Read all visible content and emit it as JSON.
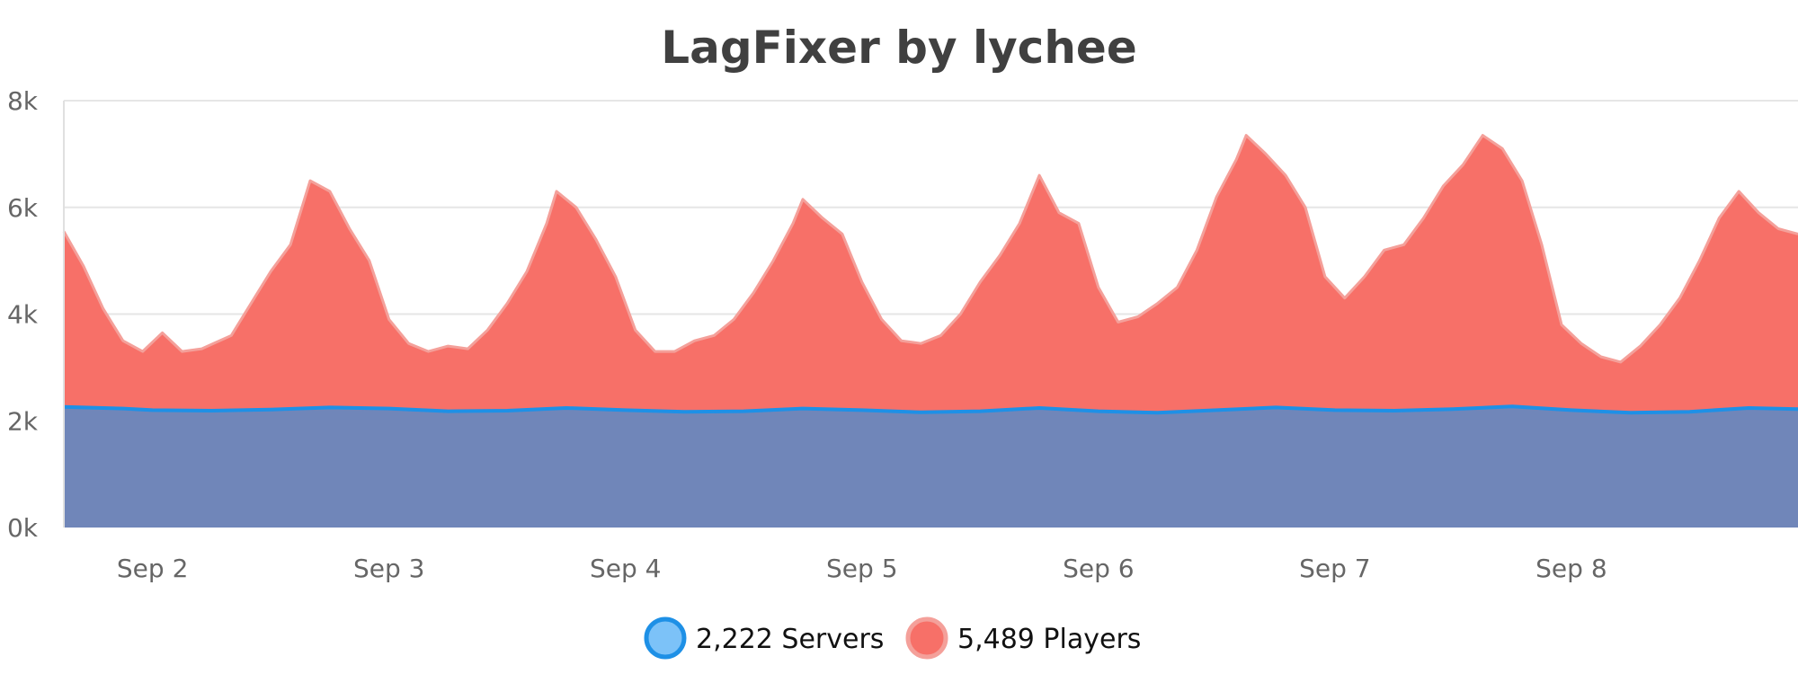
{
  "chart_data": {
    "type": "area",
    "title": "LagFixer by lychee",
    "xlabel": "",
    "ylabel": "",
    "x_range": [
      "2024-09-01 15:00",
      "2024-09-08 23:00"
    ],
    "x_ticks": [
      "Sep 2",
      "Sep 3",
      "Sep 4",
      "Sep 5",
      "Sep 6",
      "Sep 7",
      "Sep 8"
    ],
    "x_tick_positions": [
      "2024-09-02",
      "2024-09-03",
      "2024-09-04",
      "2024-09-05",
      "2024-09-06",
      "2024-09-07",
      "2024-09-08"
    ],
    "y_ticks": [
      "0k",
      "2k",
      "4k",
      "6k",
      "8k"
    ],
    "y_tick_values": [
      0,
      2000,
      4000,
      6000,
      8000
    ],
    "ylim": [
      0,
      8000
    ],
    "grid": true,
    "legend_position": "bottom-center",
    "stacked": false,
    "series": [
      {
        "name": "Servers",
        "legend_label": "2,222 Servers",
        "color": "#7086b9",
        "line_color": "#1e90e6",
        "marker_color": "#7cc2f8",
        "points": [
          [
            "2024-09-01 15:00",
            2260
          ],
          [
            "2024-09-01 21:00",
            2230
          ],
          [
            "2024-09-02 00:00",
            2200
          ],
          [
            "2024-09-02 06:00",
            2190
          ],
          [
            "2024-09-02 12:00",
            2210
          ],
          [
            "2024-09-02 18:00",
            2250
          ],
          [
            "2024-09-03 00:00",
            2230
          ],
          [
            "2024-09-03 06:00",
            2180
          ],
          [
            "2024-09-03 12:00",
            2190
          ],
          [
            "2024-09-03 18:00",
            2240
          ],
          [
            "2024-09-04 00:00",
            2200
          ],
          [
            "2024-09-04 06:00",
            2170
          ],
          [
            "2024-09-04 12:00",
            2180
          ],
          [
            "2024-09-04 18:00",
            2230
          ],
          [
            "2024-09-05 00:00",
            2200
          ],
          [
            "2024-09-05 06:00",
            2160
          ],
          [
            "2024-09-05 12:00",
            2180
          ],
          [
            "2024-09-05 18:00",
            2240
          ],
          [
            "2024-09-06 00:00",
            2180
          ],
          [
            "2024-09-06 06:00",
            2150
          ],
          [
            "2024-09-06 12:00",
            2200
          ],
          [
            "2024-09-06 18:00",
            2250
          ],
          [
            "2024-09-07 00:00",
            2200
          ],
          [
            "2024-09-07 06:00",
            2190
          ],
          [
            "2024-09-07 12:00",
            2220
          ],
          [
            "2024-09-07 18:00",
            2270
          ],
          [
            "2024-09-08 00:00",
            2200
          ],
          [
            "2024-09-08 06:00",
            2150
          ],
          [
            "2024-09-08 12:00",
            2170
          ],
          [
            "2024-09-08 18:00",
            2240
          ],
          [
            "2024-09-08 23:00",
            2220
          ]
        ]
      },
      {
        "name": "Players",
        "legend_label": "5,489 Players",
        "color": "#f77068",
        "line_color": "#f4a09a",
        "marker_color": "#f77068",
        "points": [
          [
            "2024-09-01 15:00",
            5550
          ],
          [
            "2024-09-01 17:00",
            4900
          ],
          [
            "2024-09-01 19:00",
            4100
          ],
          [
            "2024-09-01 21:00",
            3500
          ],
          [
            "2024-09-01 23:00",
            3300
          ],
          [
            "2024-09-02 01:00",
            3650
          ],
          [
            "2024-09-02 03:00",
            3300
          ],
          [
            "2024-09-02 05:00",
            3350
          ],
          [
            "2024-09-02 08:00",
            3600
          ],
          [
            "2024-09-02 10:00",
            4200
          ],
          [
            "2024-09-02 12:00",
            4800
          ],
          [
            "2024-09-02 14:00",
            5300
          ],
          [
            "2024-09-02 16:00",
            6500
          ],
          [
            "2024-09-02 18:00",
            6300
          ],
          [
            "2024-09-02 20:00",
            5600
          ],
          [
            "2024-09-02 22:00",
            5000
          ],
          [
            "2024-09-03 00:00",
            3900
          ],
          [
            "2024-09-03 02:00",
            3450
          ],
          [
            "2024-09-03 04:00",
            3300
          ],
          [
            "2024-09-03 06:00",
            3400
          ],
          [
            "2024-09-03 08:00",
            3350
          ],
          [
            "2024-09-03 10:00",
            3700
          ],
          [
            "2024-09-03 12:00",
            4200
          ],
          [
            "2024-09-03 14:00",
            4800
          ],
          [
            "2024-09-03 16:00",
            5700
          ],
          [
            "2024-09-03 17:00",
            6300
          ],
          [
            "2024-09-03 19:00",
            6000
          ],
          [
            "2024-09-03 21:00",
            5400
          ],
          [
            "2024-09-03 23:00",
            4700
          ],
          [
            "2024-09-04 01:00",
            3700
          ],
          [
            "2024-09-04 03:00",
            3300
          ],
          [
            "2024-09-04 05:00",
            3300
          ],
          [
            "2024-09-04 07:00",
            3500
          ],
          [
            "2024-09-04 09:00",
            3600
          ],
          [
            "2024-09-04 11:00",
            3900
          ],
          [
            "2024-09-04 13:00",
            4400
          ],
          [
            "2024-09-04 15:00",
            5000
          ],
          [
            "2024-09-04 17:00",
            5700
          ],
          [
            "2024-09-04 18:00",
            6150
          ],
          [
            "2024-09-04 20:00",
            5800
          ],
          [
            "2024-09-04 22:00",
            5500
          ],
          [
            "2024-09-05 00:00",
            4600
          ],
          [
            "2024-09-05 02:00",
            3900
          ],
          [
            "2024-09-05 04:00",
            3500
          ],
          [
            "2024-09-05 06:00",
            3450
          ],
          [
            "2024-09-05 08:00",
            3600
          ],
          [
            "2024-09-05 10:00",
            4000
          ],
          [
            "2024-09-05 12:00",
            4600
          ],
          [
            "2024-09-05 14:00",
            5100
          ],
          [
            "2024-09-05 16:00",
            5700
          ],
          [
            "2024-09-05 18:00",
            6600
          ],
          [
            "2024-09-05 20:00",
            5900
          ],
          [
            "2024-09-05 22:00",
            5700
          ],
          [
            "2024-09-06 00:00",
            4500
          ],
          [
            "2024-09-06 02:00",
            3850
          ],
          [
            "2024-09-06 04:00",
            3950
          ],
          [
            "2024-09-06 06:00",
            4200
          ],
          [
            "2024-09-06 08:00",
            4500
          ],
          [
            "2024-09-06 10:00",
            5200
          ],
          [
            "2024-09-06 12:00",
            6200
          ],
          [
            "2024-09-06 14:00",
            6900
          ],
          [
            "2024-09-06 15:00",
            7350
          ],
          [
            "2024-09-06 17:00",
            7000
          ],
          [
            "2024-09-06 19:00",
            6600
          ],
          [
            "2024-09-06 21:00",
            6000
          ],
          [
            "2024-09-06 23:00",
            4700
          ],
          [
            "2024-09-07 01:00",
            4300
          ],
          [
            "2024-09-07 03:00",
            4700
          ],
          [
            "2024-09-07 05:00",
            5200
          ],
          [
            "2024-09-07 07:00",
            5300
          ],
          [
            "2024-09-07 09:00",
            5800
          ],
          [
            "2024-09-07 11:00",
            6400
          ],
          [
            "2024-09-07 13:00",
            6800
          ],
          [
            "2024-09-07 15:00",
            7350
          ],
          [
            "2024-09-07 17:00",
            7100
          ],
          [
            "2024-09-07 19:00",
            6500
          ],
          [
            "2024-09-07 21:00",
            5300
          ],
          [
            "2024-09-07 23:00",
            3800
          ],
          [
            "2024-09-08 01:00",
            3450
          ],
          [
            "2024-09-08 03:00",
            3200
          ],
          [
            "2024-09-08 05:00",
            3100
          ],
          [
            "2024-09-08 07:00",
            3400
          ],
          [
            "2024-09-08 09:00",
            3800
          ],
          [
            "2024-09-08 11:00",
            4300
          ],
          [
            "2024-09-08 13:00",
            5000
          ],
          [
            "2024-09-08 15:00",
            5800
          ],
          [
            "2024-09-08 17:00",
            6300
          ],
          [
            "2024-09-08 19:00",
            5900
          ],
          [
            "2024-09-08 21:00",
            5600
          ],
          [
            "2024-09-08 23:00",
            5500
          ]
        ]
      }
    ]
  }
}
